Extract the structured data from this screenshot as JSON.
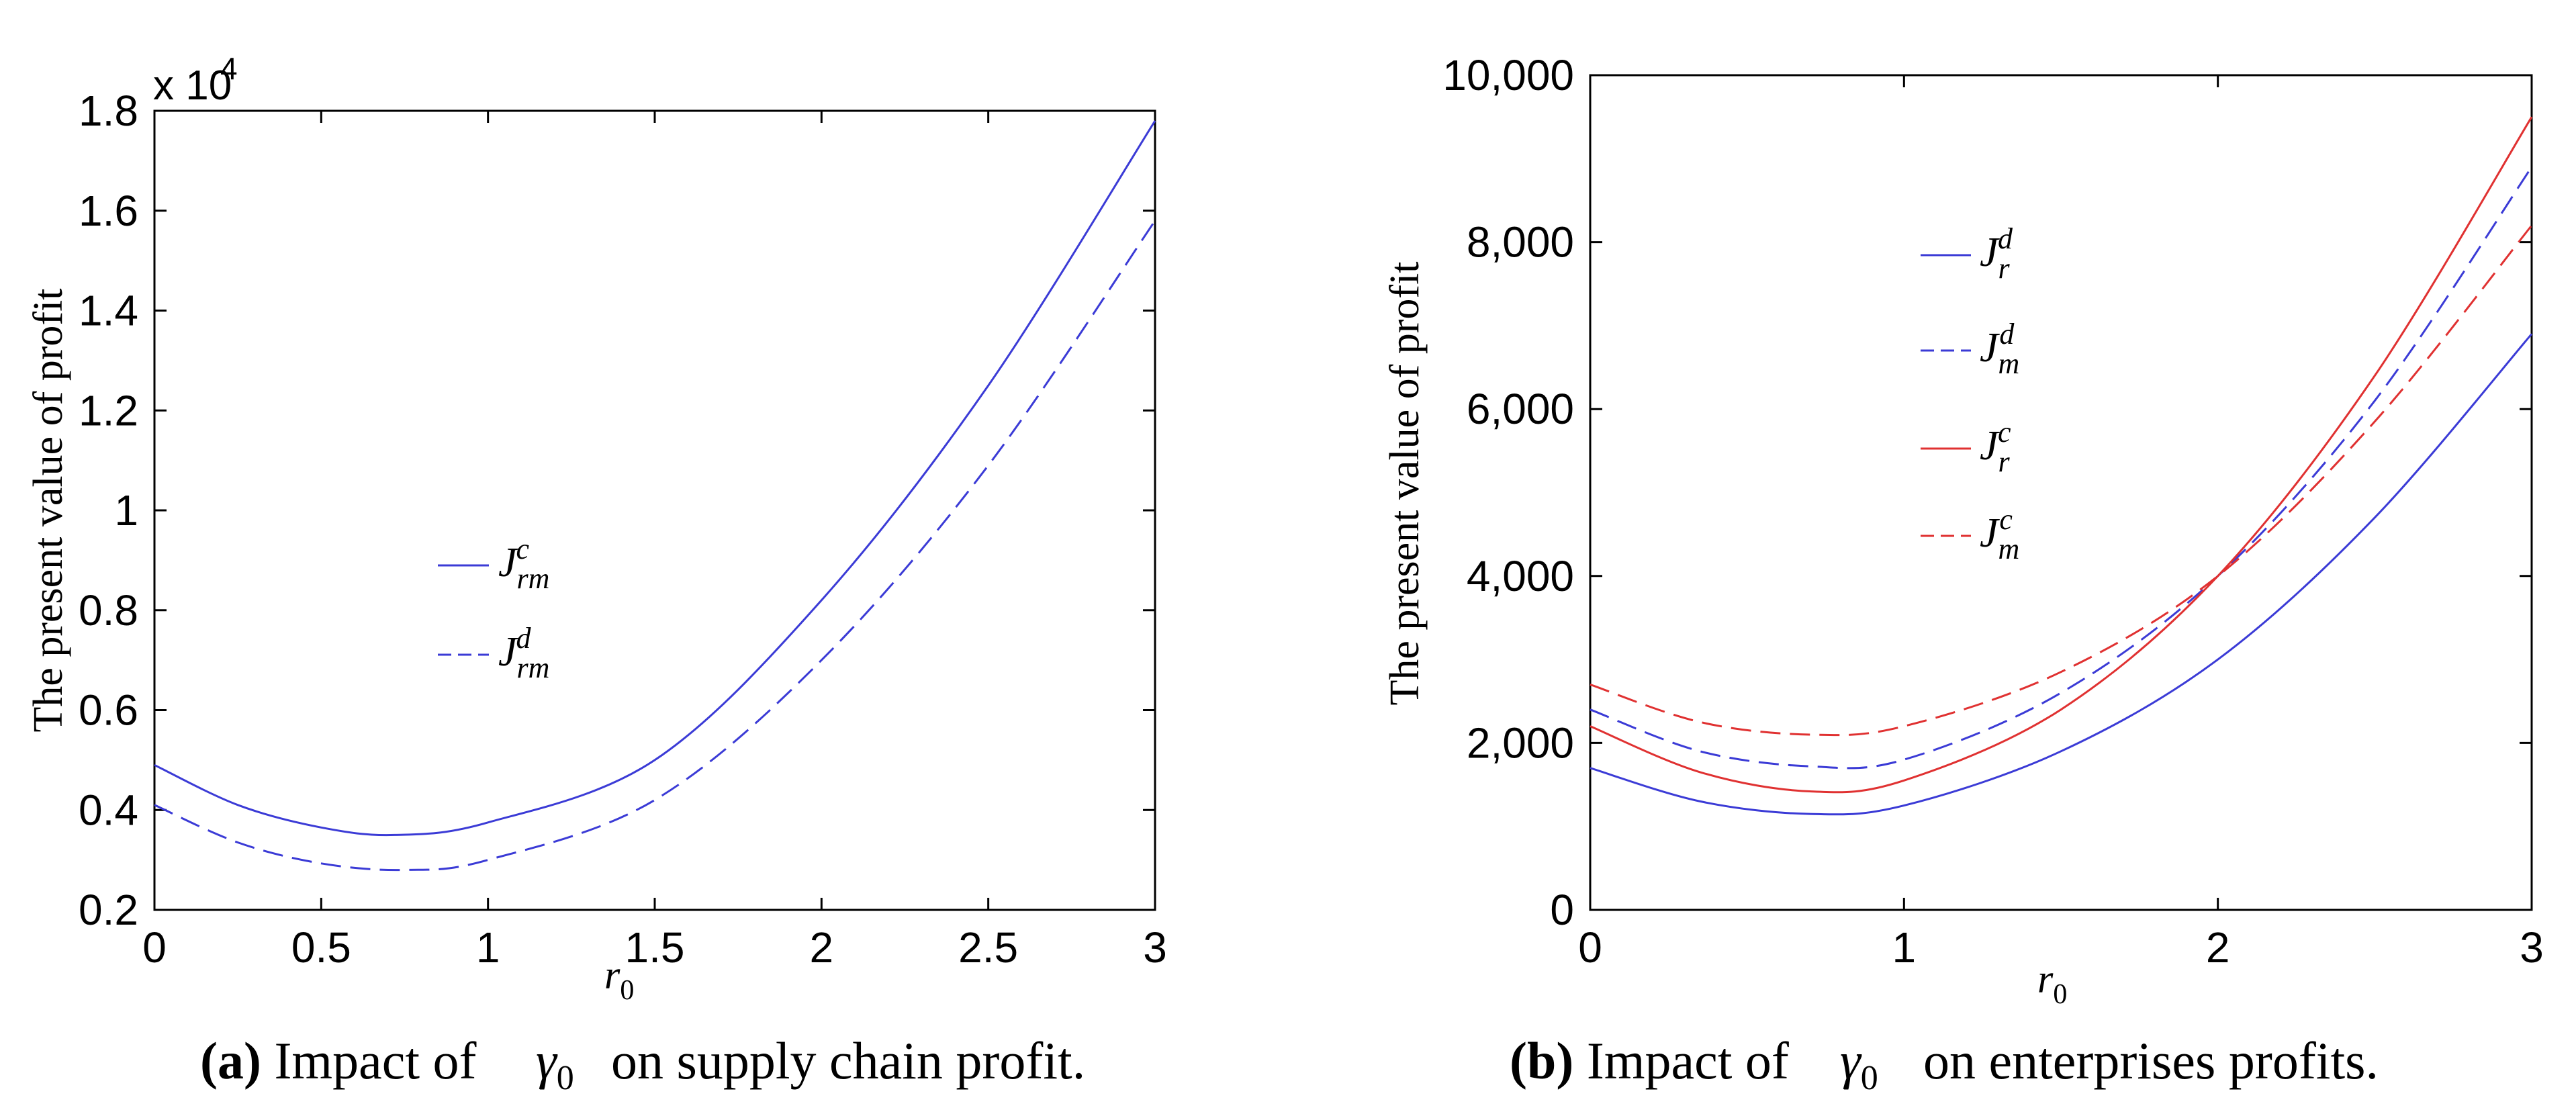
{
  "colors": {
    "blue": "#3b3bd6",
    "red": "#e03131",
    "axis": "#000000"
  },
  "chart_data": [
    {
      "type": "line",
      "xlabel": "r0",
      "ylabel": "The present value of profit",
      "xlim": [
        0,
        3
      ],
      "ylim": [
        0.2,
        1.8
      ],
      "y_multiplier_label": "x 10",
      "y_multiplier_exponent": "4",
      "xticks": [
        "0",
        "0.5",
        "1",
        "1.5",
        "2",
        "2.5",
        "3"
      ],
      "yticks": [
        "0.2",
        "0.4",
        "0.6",
        "0.8",
        "1",
        "1.2",
        "1.4",
        "1.6",
        "1.8"
      ],
      "legend_position": "center-left",
      "series": [
        {
          "name": "Jrm^c",
          "base": "J",
          "sub": "rm",
          "sup": "c",
          "color": "#3b3bd6",
          "dash": "solid",
          "x": [
            0,
            0.25,
            0.5,
            0.72,
            1.0,
            1.5,
            2.0,
            2.5,
            3.0
          ],
          "values": [
            0.49,
            0.41,
            0.365,
            0.35,
            0.375,
            0.5,
            0.82,
            1.25,
            1.78
          ]
        },
        {
          "name": "Jrm^d",
          "base": "J",
          "sub": "rm",
          "sup": "d",
          "color": "#3b3bd6",
          "dash": "dashed",
          "x": [
            0,
            0.25,
            0.5,
            0.75,
            1.0,
            1.5,
            2.0,
            2.5,
            3.0
          ],
          "values": [
            0.41,
            0.335,
            0.293,
            0.28,
            0.3,
            0.42,
            0.7,
            1.09,
            1.58
          ]
        }
      ],
      "caption_label": "(a)",
      "caption_text": "Impact of",
      "caption_symbol": "γ0",
      "caption_rest": "on supply chain profit."
    },
    {
      "type": "line",
      "xlabel": "r0",
      "ylabel": "The present value of profit",
      "xlim": [
        0,
        3
      ],
      "ylim": [
        0,
        10000
      ],
      "xticks": [
        "0",
        "1",
        "2",
        "3"
      ],
      "yticks": [
        "0",
        "2,000",
        "4,000",
        "6,000",
        "8,000",
        "10,000"
      ],
      "legend_position": "upper-left",
      "series": [
        {
          "name": "Jr^d",
          "base": "J",
          "sub": "r",
          "sup": "d",
          "color": "#3b3bd6",
          "dash": "solid",
          "x": [
            0,
            0.35,
            0.7,
            1.0,
            1.5,
            2.0,
            2.5,
            3.0
          ],
          "values": [
            1700,
            1300,
            1150,
            1250,
            1900,
            3000,
            4700,
            6900
          ]
        },
        {
          "name": "Jm^d",
          "base": "J",
          "sub": "m",
          "sup": "d",
          "color": "#3b3bd6",
          "dash": "dashed",
          "x": [
            0,
            0.35,
            0.7,
            1.0,
            1.5,
            2.0,
            2.5,
            3.0
          ],
          "values": [
            2400,
            1900,
            1720,
            1800,
            2600,
            4000,
            6100,
            8900
          ]
        },
        {
          "name": "Jr^c",
          "base": "J",
          "sub": "r",
          "sup": "c",
          "color": "#e03131",
          "dash": "solid",
          "x": [
            0,
            0.35,
            0.7,
            1.0,
            1.5,
            2.0,
            2.5,
            3.0
          ],
          "values": [
            2200,
            1650,
            1420,
            1550,
            2400,
            4000,
            6400,
            9500
          ]
        },
        {
          "name": "Jm^c",
          "base": "J",
          "sub": "m",
          "sup": "c",
          "color": "#e03131",
          "dash": "dashed",
          "x": [
            0,
            0.35,
            0.7,
            1.0,
            1.5,
            2.0,
            2.5,
            3.0
          ],
          "values": [
            2700,
            2250,
            2100,
            2200,
            2850,
            4000,
            5850,
            8200
          ]
        }
      ],
      "caption_label": "(b)",
      "caption_text": "Impact of",
      "caption_symbol": "γ0",
      "caption_rest": "on enterprises profits."
    }
  ]
}
